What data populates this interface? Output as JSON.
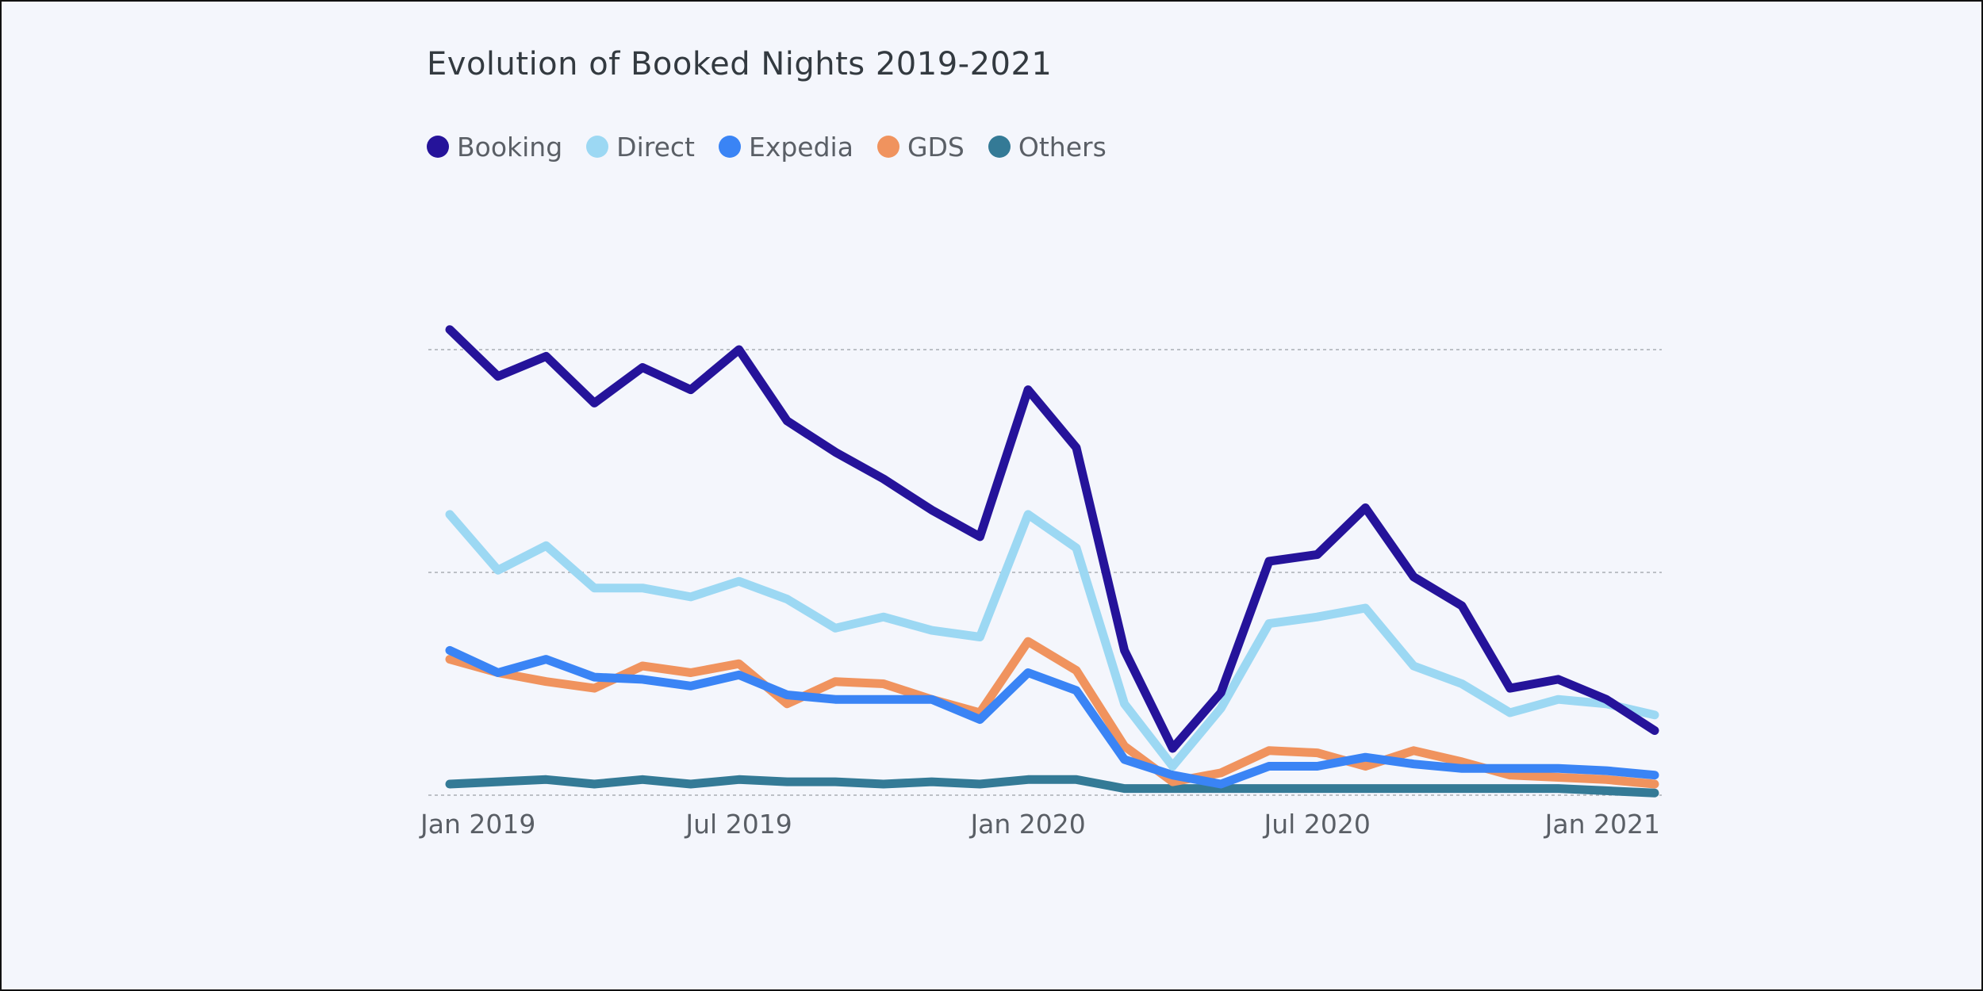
{
  "chart_data": {
    "type": "line",
    "title": "Evolution of Booked Nights 2019-2021",
    "xlabel": "",
    "ylabel": "",
    "x_tick_labels": [
      "Jan 2019",
      "Jul 2019",
      "Jan 2020",
      "Jul 2020",
      "Jan 2021"
    ],
    "x_tick_indices": [
      0,
      6,
      12,
      18,
      24
    ],
    "categories": [
      "Jan 2019",
      "Feb 2019",
      "Mar 2019",
      "Apr 2019",
      "May 2019",
      "Jun 2019",
      "Jul 2019",
      "Aug 2019",
      "Sep 2019",
      "Oct 2019",
      "Nov 2019",
      "Dec 2019",
      "Jan 2020",
      "Feb 2020",
      "Mar 2020",
      "Apr 2020",
      "May 2020",
      "Jun 2020",
      "Jul 2020",
      "Aug 2020",
      "Sep 2020",
      "Oct 2020",
      "Nov 2020",
      "Dec 2020",
      "Jan 2021",
      "Feb 2021"
    ],
    "ylim": [
      0,
      100
    ],
    "grid": true,
    "legend_position": "top-left",
    "series": [
      {
        "name": "Booking",
        "color": "#25139a",
        "values": [
          104.5,
          94,
          98.5,
          88,
          96,
          91,
          100,
          84,
          77,
          71,
          64,
          58,
          91,
          78,
          32.5,
          10.5,
          23,
          52.5,
          54,
          64.5,
          49,
          42.5,
          24,
          26,
          21.5,
          14.5
        ]
      },
      {
        "name": "Direct",
        "color": "#9cd8f3",
        "values": [
          63,
          50.5,
          56,
          46.5,
          46.5,
          44.5,
          48,
          44,
          37.5,
          40,
          37,
          35.5,
          63,
          55.5,
          20.5,
          6.5,
          19.5,
          38.5,
          40,
          42,
          29,
          25,
          18.5,
          21.5,
          20.5,
          18
        ]
      },
      {
        "name": "Expedia",
        "color": "#3a84f5",
        "values": [
          32.5,
          27.5,
          30.5,
          26.5,
          26,
          24.5,
          27,
          22.5,
          21.5,
          21.5,
          21.5,
          17,
          27.5,
          23.5,
          8,
          4.5,
          2.5,
          6.5,
          6.5,
          8.5,
          7,
          6,
          6,
          6,
          5.5,
          4.5
        ]
      },
      {
        "name": "GDS",
        "color": "#f0935e",
        "values": [
          30.5,
          27.5,
          25.5,
          24,
          29,
          27.5,
          29.5,
          20.5,
          25.5,
          25,
          21.5,
          18.5,
          34.5,
          28,
          11,
          3,
          5,
          10,
          9.5,
          6.5,
          10,
          7.5,
          4.5,
          4,
          3.5,
          2.5
        ]
      },
      {
        "name": "Others",
        "color": "#347a96",
        "values": [
          2.5,
          3,
          3.5,
          2.5,
          3.5,
          2.5,
          3.5,
          3,
          3,
          2.5,
          3,
          2.5,
          3.5,
          3.5,
          1.5,
          1.5,
          1.5,
          1.5,
          1.5,
          1.5,
          1.5,
          1.5,
          1.5,
          1.5,
          1,
          0.5
        ]
      }
    ]
  }
}
